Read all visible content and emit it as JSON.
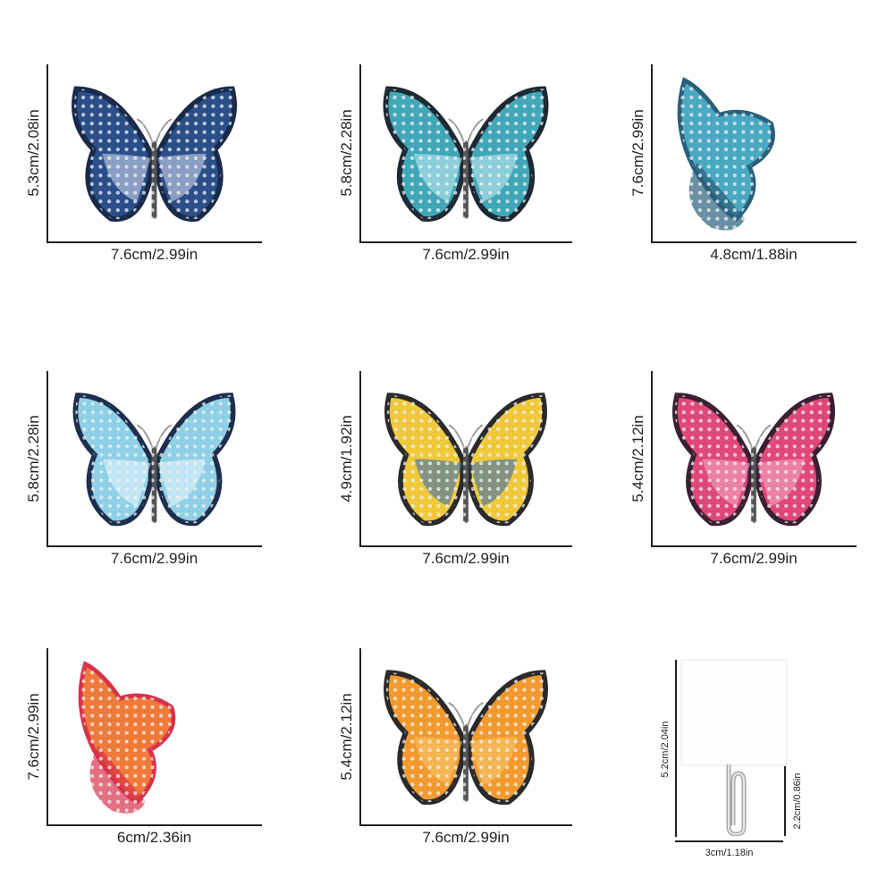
{
  "items": [
    {
      "height_label": "5.3cm/2.08in",
      "width_label": "7.6cm/2.99in",
      "colors": {
        "wing": "#2b4f8a",
        "dark": "#1a2a4a",
        "light": "#c9d6ea"
      }
    },
    {
      "height_label": "5.8cm/2.28in",
      "width_label": "7.6cm/2.99in",
      "colors": {
        "wing": "#3fa7b8",
        "dark": "#1e2a33",
        "light": "#bfe7ef"
      }
    },
    {
      "height_label": "7.6cm/2.99in",
      "width_label": "4.8cm/1.88in",
      "colors": {
        "wing": "#4aa9c2",
        "dark": "#2a5f7a",
        "light": "#cdeaf2"
      }
    },
    {
      "height_label": "5.8cm/2.28in",
      "width_label": "7.6cm/2.99in",
      "colors": {
        "wing": "#8fd0e6",
        "dark": "#1e2f4d",
        "light": "#e5f5fb"
      }
    },
    {
      "height_label": "4.9cm/1.92in",
      "width_label": "7.6cm/2.99in",
      "colors": {
        "wing": "#f0c93a",
        "dark": "#2a2a2a",
        "light": "#3a6fb0"
      }
    },
    {
      "height_label": "5.4cm/2.12in",
      "width_label": "7.6cm/2.99in",
      "colors": {
        "wing": "#e0487a",
        "dark": "#3a2030",
        "light": "#f4a8c4"
      }
    },
    {
      "height_label": "7.6cm/2.99in",
      "width_label": "6cm/2.36in",
      "colors": {
        "wing": "#f07a3a",
        "dark": "#d8324a",
        "light": "#f9c0a0"
      }
    },
    {
      "height_label": "5.4cm/2.12in",
      "width_label": "7.6cm/2.99in",
      "colors": {
        "wing": "#f29a2e",
        "dark": "#2a2a2a",
        "light": "#f7c86a"
      }
    }
  ],
  "hook": {
    "height_label": "5.2cm/2.04in",
    "width_label": "3cm/1.18in",
    "hook_height_label": "2.2cm/0.86in"
  }
}
